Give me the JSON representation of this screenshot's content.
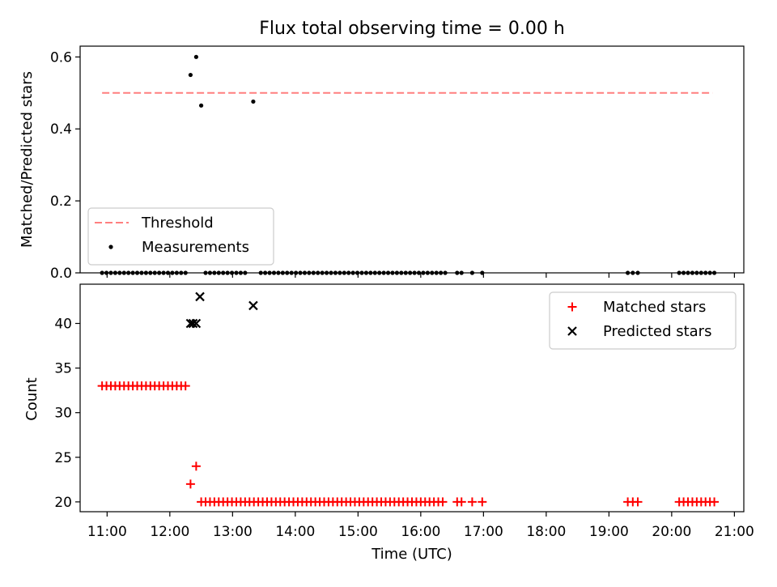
{
  "chart_data": {
    "title": "Flux total observing time = 0.00 h",
    "xlabel": "Time (UTC)",
    "x_tick_labels": [
      "11:00",
      "12:00",
      "13:00",
      "14:00",
      "15:00",
      "16:00",
      "17:00",
      "18:00",
      "19:00",
      "20:00",
      "21:00"
    ],
    "x_ticks_hours": [
      11,
      12,
      13,
      14,
      15,
      16,
      17,
      18,
      19,
      20,
      21
    ],
    "xlim_hours": [
      10.57,
      21.15
    ],
    "panels": [
      {
        "type": "scatter",
        "ylabel": "Matched/Predicted stars",
        "ylim": [
          0,
          0.63
        ],
        "y_ticks": [
          0,
          0.2,
          0.4,
          0.6
        ],
        "y_tick_labels": [
          "0.0",
          "0.2",
          "0.4",
          "0.6"
        ],
        "legend_position": "lower-left",
        "threshold": {
          "name": "Threshold",
          "y": 0.5,
          "x_start": 10.92,
          "x_end": 20.65,
          "color": "#ff7f7f"
        },
        "series": [
          {
            "name": "Measurements",
            "color": "#000000",
            "marker": "dot",
            "x": [
              10.92,
              10.99,
              11.06,
              11.13,
              11.2,
              11.27,
              11.34,
              11.41,
              11.48,
              11.55,
              11.62,
              11.69,
              11.76,
              11.83,
              11.9,
              11.97,
              12.04,
              12.11,
              12.18,
              12.25,
              12.33,
              12.42,
              12.5,
              12.57,
              12.64,
              12.71,
              12.78,
              12.85,
              12.92,
              12.99,
              13.06,
              13.13,
              13.2,
              13.33,
              13.45,
              13.52,
              13.59,
              13.66,
              13.73,
              13.8,
              13.87,
              13.94,
              14.01,
              14.08,
              14.15,
              14.22,
              14.29,
              14.36,
              14.43,
              14.5,
              14.57,
              14.64,
              14.71,
              14.78,
              14.85,
              14.92,
              14.99,
              15.06,
              15.13,
              15.2,
              15.27,
              15.34,
              15.41,
              15.48,
              15.55,
              15.62,
              15.69,
              15.76,
              15.83,
              15.9,
              15.97,
              16.04,
              16.11,
              16.18,
              16.25,
              16.32,
              16.39,
              16.58,
              16.65,
              16.82,
              16.98,
              19.3,
              19.38,
              19.46,
              20.12,
              20.19,
              20.26,
              20.33,
              20.4,
              20.47,
              20.54,
              20.61,
              20.68
            ],
            "y": [
              0,
              0,
              0,
              0,
              0,
              0,
              0,
              0,
              0,
              0,
              0,
              0,
              0,
              0,
              0,
              0,
              0,
              0,
              0,
              0,
              0.55,
              0.6,
              0.465,
              0,
              0,
              0,
              0,
              0,
              0,
              0,
              0,
              0,
              0,
              0.476,
              0,
              0,
              0,
              0,
              0,
              0,
              0,
              0,
              0,
              0,
              0,
              0,
              0,
              0,
              0,
              0,
              0,
              0,
              0,
              0,
              0,
              0,
              0,
              0,
              0,
              0,
              0,
              0,
              0,
              0,
              0,
              0,
              0,
              0,
              0,
              0,
              0,
              0,
              0,
              0,
              0,
              0,
              0,
              0,
              0,
              0,
              0,
              0,
              0,
              0,
              0,
              0,
              0,
              0,
              0,
              0,
              0,
              0,
              0
            ]
          }
        ]
      },
      {
        "type": "scatter",
        "ylabel": "Count",
        "ylim": [
          18.9,
          44.4
        ],
        "y_ticks": [
          20,
          25,
          30,
          35,
          40
        ],
        "y_tick_labels": [
          "20",
          "25",
          "30",
          "35",
          "40"
        ],
        "legend_position": "upper-right",
        "series": [
          {
            "name": "Matched stars",
            "color": "#ff0000",
            "marker": "plus",
            "x": [
              10.92,
              10.99,
              11.06,
              11.13,
              11.2,
              11.27,
              11.34,
              11.41,
              11.48,
              11.55,
              11.62,
              11.69,
              11.76,
              11.83,
              11.9,
              11.97,
              12.04,
              12.11,
              12.18,
              12.25,
              12.33,
              12.42,
              12.5,
              12.57,
              12.64,
              12.71,
              12.78,
              12.85,
              12.92,
              12.99,
              13.06,
              13.13,
              13.2,
              13.27,
              13.34,
              13.41,
              13.48,
              13.55,
              13.62,
              13.69,
              13.76,
              13.83,
              13.9,
              13.97,
              14.04,
              14.11,
              14.18,
              14.25,
              14.32,
              14.39,
              14.46,
              14.53,
              14.6,
              14.67,
              14.74,
              14.81,
              14.88,
              14.95,
              15.02,
              15.09,
              15.16,
              15.23,
              15.3,
              15.37,
              15.44,
              15.51,
              15.58,
              15.65,
              15.72,
              15.79,
              15.86,
              15.93,
              16.0,
              16.07,
              16.14,
              16.21,
              16.28,
              16.35,
              16.58,
              16.65,
              16.82,
              16.98,
              19.3,
              19.38,
              19.46,
              20.12,
              20.19,
              20.26,
              20.33,
              20.4,
              20.47,
              20.54,
              20.61,
              20.68
            ],
            "y": [
              33,
              33,
              33,
              33,
              33,
              33,
              33,
              33,
              33,
              33,
              33,
              33,
              33,
              33,
              33,
              33,
              33,
              33,
              33,
              33,
              22,
              24,
              20,
              20,
              20,
              20,
              20,
              20,
              20,
              20,
              20,
              20,
              20,
              20,
              20,
              20,
              20,
              20,
              20,
              20,
              20,
              20,
              20,
              20,
              20,
              20,
              20,
              20,
              20,
              20,
              20,
              20,
              20,
              20,
              20,
              20,
              20,
              20,
              20,
              20,
              20,
              20,
              20,
              20,
              20,
              20,
              20,
              20,
              20,
              20,
              20,
              20,
              20,
              20,
              20,
              20,
              20,
              20,
              20,
              20,
              20,
              20,
              20,
              20,
              20,
              20,
              20,
              20,
              20,
              20,
              20,
              20,
              20,
              20
            ]
          },
          {
            "name": "Predicted stars",
            "color": "#000000",
            "marker": "x",
            "x": [
              12.33,
              12.37,
              12.42,
              12.48,
              13.33
            ],
            "y": [
              40,
              40,
              40,
              43,
              42
            ]
          }
        ]
      }
    ]
  }
}
